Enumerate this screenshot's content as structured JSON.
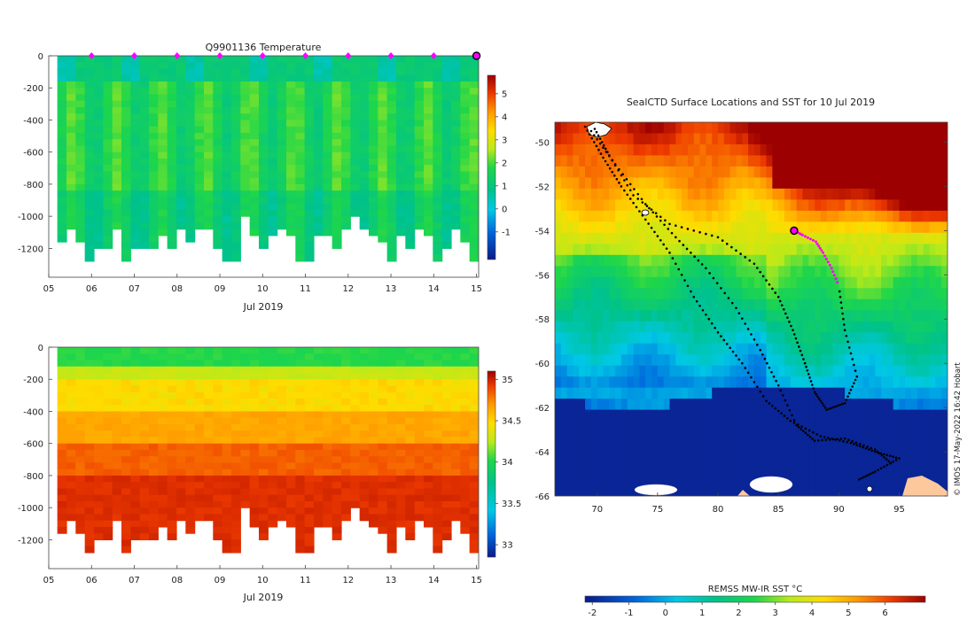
{
  "chart_data": [
    {
      "id": "temperature",
      "type": "heatmap",
      "title": "Q9901136  Temperature",
      "xlabel": "Jul 2019",
      "x_ticks": [
        "05",
        "06",
        "07",
        "08",
        "09",
        "10",
        "11",
        "12",
        "13",
        "14",
        "15"
      ],
      "xlim": [
        5,
        15.05
      ],
      "ylim": [
        -1380,
        0
      ],
      "y_ticks": [
        0,
        -200,
        -400,
        -600,
        -800,
        -1000,
        -1200
      ],
      "y_tick_labels": [
        "0",
        "-200",
        "-400",
        "-600",
        "-800",
        "-1000",
        "-1200"
      ],
      "colorbar": {
        "min": -2.2,
        "max": 5.8,
        "ticks": [
          -1,
          0,
          1,
          2,
          3,
          4,
          5
        ],
        "tick_labels": [
          "-1",
          "0",
          "1",
          "2",
          "3",
          "4",
          "5"
        ]
      },
      "midnight_markers": [
        6,
        7,
        8,
        9,
        10,
        11,
        12,
        13,
        14
      ],
      "latest_marker": 15,
      "colors": {
        "marker": "#ff00ff"
      }
    },
    {
      "id": "salinity",
      "type": "heatmap",
      "title": "",
      "xlabel": "Jul 2019",
      "x_ticks": [
        "05",
        "06",
        "07",
        "08",
        "09",
        "10",
        "11",
        "12",
        "13",
        "14",
        "15"
      ],
      "xlim": [
        5,
        15.05
      ],
      "ylim": [
        -1380,
        0
      ],
      "y_ticks": [
        0,
        -200,
        -400,
        -600,
        -800,
        -1000,
        -1200
      ],
      "y_tick_labels": [
        "0",
        "-200",
        "-400",
        "-600",
        "-800",
        "-1000",
        "-1200"
      ],
      "colorbar": {
        "min": 32.85,
        "max": 35.1,
        "ticks": [
          33,
          33.5,
          34,
          34.5,
          35
        ],
        "tick_labels": [
          "33",
          "33.5",
          "34",
          "34.5",
          "35"
        ]
      }
    },
    {
      "id": "sst_map",
      "type": "heatmap",
      "title": "SealCTD Surface Locations and SST for 10 Jul 2019",
      "xlim": [
        66.5,
        99
      ],
      "ylim": [
        -66,
        -49.1
      ],
      "x_ticks": [
        70,
        75,
        80,
        85,
        90,
        95
      ],
      "x_tick_labels": [
        "70",
        "75",
        "80",
        "85",
        "90",
        "95"
      ],
      "y_ticks": [
        -50,
        -52,
        -54,
        -56,
        -58,
        -60,
        -62,
        -64,
        -66
      ],
      "y_tick_labels": [
        "-50",
        "-52",
        "-54",
        "-56",
        "-58",
        "-60",
        "-62",
        "-64",
        "-66"
      ],
      "colorbar": {
        "label": "REMSS MW-IR SST °C",
        "min": -2.2,
        "max": 7.1,
        "ticks": [
          -2,
          -1,
          0,
          1,
          2,
          3,
          4,
          5,
          6
        ],
        "tick_labels": [
          "-2",
          "-1",
          "0",
          "1",
          "2",
          "3",
          "4",
          "5",
          "6"
        ]
      },
      "current_position": {
        "lon": 86.3,
        "lat": -54.0
      },
      "recent_track": [
        {
          "lon": 86.3,
          "lat": -54.0
        },
        {
          "lon": 87.0,
          "lat": -54.2
        },
        {
          "lon": 88.1,
          "lat": -54.5
        },
        {
          "lon": 88.7,
          "lat": -55.0
        },
        {
          "lon": 89.4,
          "lat": -55.7
        },
        {
          "lon": 90.0,
          "lat": -56.5
        }
      ],
      "tracks": [
        [
          {
            "lon": 69.0,
            "lat": -49.3
          },
          {
            "lon": 70.5,
            "lat": -50.7
          },
          {
            "lon": 72.0,
            "lat": -52.0
          },
          {
            "lon": 74.0,
            "lat": -53.5
          },
          {
            "lon": 76.0,
            "lat": -55.0
          },
          {
            "lon": 78.0,
            "lat": -57.0
          },
          {
            "lon": 80.0,
            "lat": -58.6
          },
          {
            "lon": 82.0,
            "lat": -60.0
          },
          {
            "lon": 84.0,
            "lat": -61.7
          },
          {
            "lon": 86.0,
            "lat": -62.6
          },
          {
            "lon": 88.5,
            "lat": -63.3
          },
          {
            "lon": 91.0,
            "lat": -63.6
          },
          {
            "lon": 93.0,
            "lat": -64.0
          },
          {
            "lon": 95.0,
            "lat": -64.3
          },
          {
            "lon": 93.0,
            "lat": -64.9
          },
          {
            "lon": 91.5,
            "lat": -65.3
          }
        ],
        [
          {
            "lon": 69.5,
            "lat": -49.5
          },
          {
            "lon": 71.5,
            "lat": -51.0
          },
          {
            "lon": 74.0,
            "lat": -52.8
          },
          {
            "lon": 76.5,
            "lat": -54.3
          },
          {
            "lon": 79.0,
            "lat": -55.7
          },
          {
            "lon": 81.5,
            "lat": -57.5
          },
          {
            "lon": 83.5,
            "lat": -59.4
          },
          {
            "lon": 85.0,
            "lat": -61.0
          },
          {
            "lon": 86.5,
            "lat": -62.8
          },
          {
            "lon": 88.0,
            "lat": -63.5
          },
          {
            "lon": 90.5,
            "lat": -63.4
          },
          {
            "lon": 93.0,
            "lat": -63.9
          },
          {
            "lon": 94.5,
            "lat": -64.6
          }
        ],
        [
          {
            "lon": 69.8,
            "lat": -49.4
          },
          {
            "lon": 71.0,
            "lat": -50.6
          },
          {
            "lon": 73.0,
            "lat": -52.4
          },
          {
            "lon": 76.0,
            "lat": -53.7
          },
          {
            "lon": 80.0,
            "lat": -54.3
          },
          {
            "lon": 83.0,
            "lat": -55.5
          },
          {
            "lon": 85.0,
            "lat": -57.0
          },
          {
            "lon": 86.2,
            "lat": -58.5
          },
          {
            "lon": 87.2,
            "lat": -60.0
          },
          {
            "lon": 88.0,
            "lat": -61.3
          },
          {
            "lon": 89.0,
            "lat": -62.1
          },
          {
            "lon": 90.5,
            "lat": -61.8
          },
          {
            "lon": 91.5,
            "lat": -60.6
          },
          {
            "lon": 90.5,
            "lat": -58.5
          },
          {
            "lon": 90.0,
            "lat": -56.5
          }
        ]
      ],
      "colors": {
        "track": "#000000",
        "recent": "#ff00ff"
      }
    }
  ],
  "watermark": "© IMOS 17-May-2022 16:42 Hobart"
}
